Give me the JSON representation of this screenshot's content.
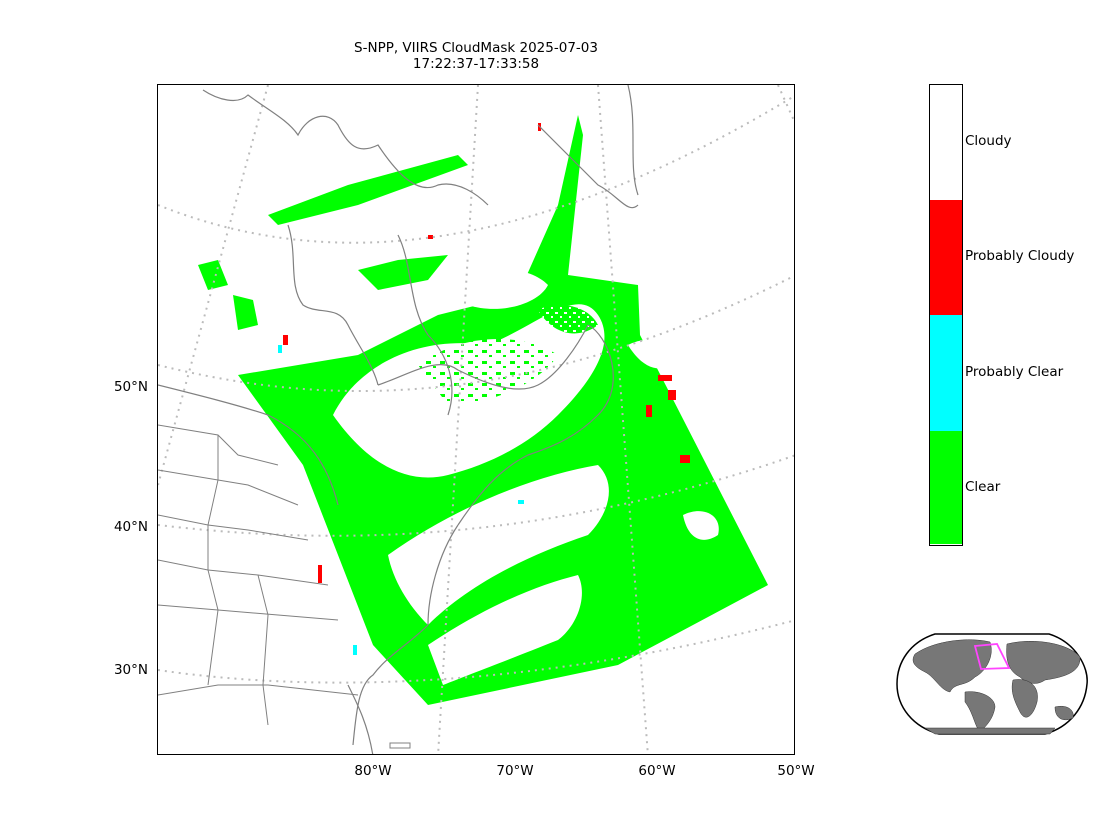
{
  "title": {
    "line1": "S-NPP, VIIRS CloudMask 2025-07-03",
    "line2": "17:22:37-17:33:58"
  },
  "map": {
    "lat_labels": [
      "50°N",
      "40°N",
      "30°N"
    ],
    "lon_labels": [
      "80°W",
      "70°W",
      "60°W",
      "50°W"
    ]
  },
  "legend": {
    "categories": [
      {
        "label": "Cloudy",
        "color": "#ffffff"
      },
      {
        "label": "Probably Cloudy",
        "color": "#ff0000"
      },
      {
        "label": "Probably Clear",
        "color": "#00ffff"
      },
      {
        "label": "Clear",
        "color": "#00ff00"
      }
    ]
  },
  "overview_map": {
    "outline_color": "#ff44ff",
    "land_color": "#777777"
  }
}
